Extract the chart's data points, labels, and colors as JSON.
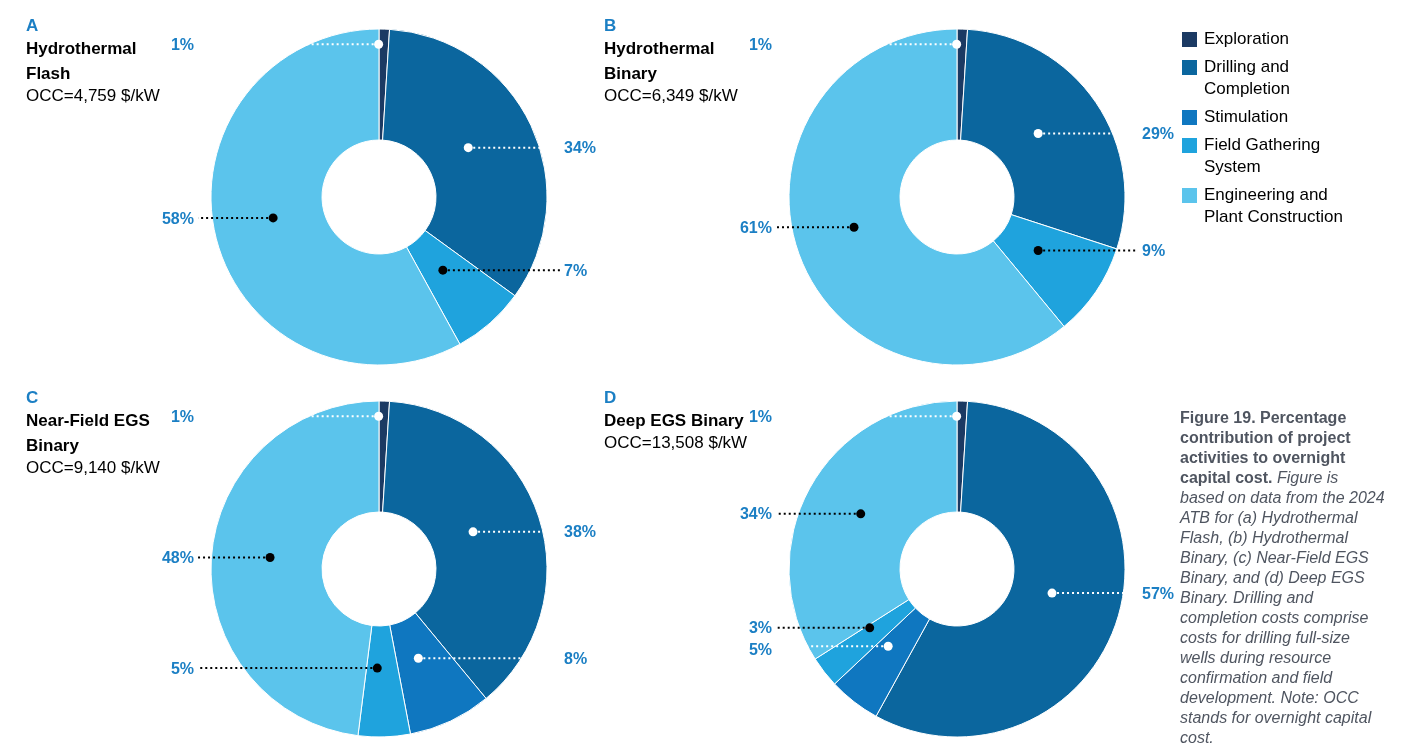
{
  "chart_data": [
    {
      "type": "donut",
      "title": "Hydrothermal Flash",
      "subtitle": "OCC=4,759 $/kW",
      "annotations": [
        "A"
      ],
      "values": [
        1,
        34,
        7,
        58
      ],
      "value_labels": [
        "1%",
        "34%",
        "7%",
        "58%"
      ],
      "colors": [
        "#1b3a63",
        "#0b669e",
        "#1fa3dd",
        "#5bc4ec"
      ]
    },
    {
      "type": "donut",
      "title": "Hydrothermal Binary",
      "subtitle": "OCC=6,349 $/kW",
      "annotations": [
        "B"
      ],
      "legend": "right",
      "categories": [
        "Exploration",
        "Drilling and Completion",
        "Stimulation",
        "Field Gathering System",
        "Engineering and Plant Construction"
      ],
      "values": [
        1,
        29,
        null,
        9,
        61
      ],
      "value_labels": [
        "1%",
        "29%",
        null,
        "9%",
        "61%"
      ],
      "colors": [
        "#1b3a63",
        "#0b669e",
        "#0f77c0",
        "#1fa3dd",
        "#5bc4ec"
      ]
    },
    {
      "type": "donut",
      "title": "Near-Field EGS Binary",
      "subtitle": "OCC=9,140 $/kW",
      "annotations": [
        "C"
      ],
      "values": [
        1,
        38,
        8,
        5,
        48
      ],
      "value_labels": [
        "1%",
        "38%",
        "8%",
        "5%",
        "48%"
      ],
      "colors": [
        "#1b3a63",
        "#0b669e",
        "#0f77c0",
        "#1fa3dd",
        "#5bc4ec"
      ]
    },
    {
      "type": "donut",
      "title": "Deep EGS Binary",
      "subtitle": "OCC=13,508 $/kW",
      "annotations": [
        "D",
        "Figure 19. Percentage contribution of project activities to overnight capital cost.",
        "Figure is based on data from the 2024 ATB for (a) Hydrothermal Flash, (b) Hydrothermal Binary, (c) Near-Field EGS Binary, and (d) Deep EGS Binary. Drilling and completion costs comprise costs for drilling full-size wells during resource confirmation and field development. Note: OCC stands for overnight capital cost."
      ],
      "values": [
        1,
        57,
        5,
        3,
        34
      ],
      "value_labels": [
        "1%",
        "57%",
        "5%",
        "3%",
        "34%"
      ],
      "colors": [
        "#1b3a63",
        "#0b669e",
        "#0f77c0",
        "#1fa3dd",
        "#5bc4ec"
      ]
    }
  ]
}
